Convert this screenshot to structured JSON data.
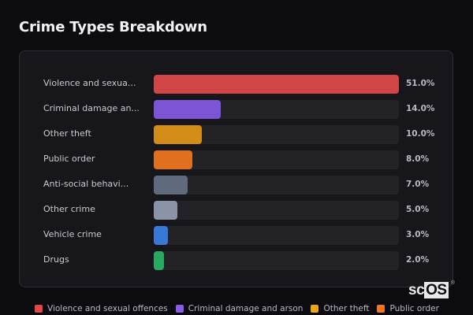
{
  "title": "Crime Types Breakdown",
  "chart_data": {
    "type": "bar",
    "orientation": "horizontal",
    "title": "Crime Types Breakdown",
    "categories": [
      "Violence and sexual offences",
      "Criminal damage and arson",
      "Other theft",
      "Public order",
      "Anti-social behaviour",
      "Other crime",
      "Vehicle crime",
      "Drugs"
    ],
    "display_labels": [
      "Violence and sexua...",
      "Criminal damage an...",
      "Other theft",
      "Public order",
      "Anti-social behavi...",
      "Other crime",
      "Vehicle crime",
      "Drugs"
    ],
    "values": [
      51.0,
      14.0,
      10.0,
      8.0,
      7.0,
      5.0,
      3.0,
      2.0
    ],
    "value_labels": [
      "51.0%",
      "14.0%",
      "10.0%",
      "8.0%",
      "7.0%",
      "5.0%",
      "3.0%",
      "2.0%"
    ],
    "colors": [
      "#d04545",
      "#7b55d6",
      "#d48c18",
      "#e0701e",
      "#5f6a7d",
      "#8a94a6",
      "#3a78d8",
      "#28a860"
    ],
    "xlabel": "",
    "ylabel": "",
    "xlim": [
      0,
      51
    ],
    "grid": false,
    "legend": {
      "position": "bottom",
      "entries": [
        {
          "label": "Violence and sexual offences",
          "color": "#e04848"
        },
        {
          "label": "Criminal damage and arson",
          "color": "#8a5ce8"
        },
        {
          "label": "Other theft",
          "color": "#f0a418"
        },
        {
          "label": "Public order",
          "color": "#f07820"
        }
      ]
    }
  },
  "watermark": {
    "sc": "sc",
    "os": "OS",
    "reg": "®"
  }
}
